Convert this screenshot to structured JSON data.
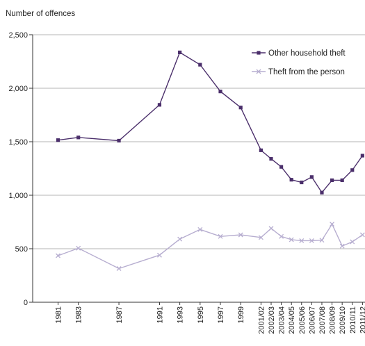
{
  "chart_data": {
    "type": "line",
    "title": "",
    "ylabel": "Number of offences",
    "xlabel": "",
    "ylim": [
      0,
      2500
    ],
    "yticks": [
      0,
      500,
      1000,
      1500,
      2000,
      2500
    ],
    "ytick_labels": [
      "0",
      "500",
      "1,000",
      "1,500",
      "2,000",
      "2,500"
    ],
    "grid": "horizontal",
    "legend_position": "top-right",
    "x": [
      "1981",
      "1983",
      "1987",
      "1991",
      "1993",
      "1995",
      "1997",
      "1999",
      "2001/02",
      "2002/03",
      "2003/04",
      "2004/05",
      "2005/06",
      "2006/07",
      "2007/08",
      "2008/09",
      "2009/10",
      "2010/11",
      "2011/12"
    ],
    "x_positions": [
      1981,
      1983,
      1987,
      1991,
      1993,
      1995,
      1997,
      1999,
      2001,
      2002,
      2003,
      2004,
      2005,
      2006,
      2007,
      2008,
      2009,
      2010,
      2011
    ],
    "series": [
      {
        "name": "Other household theft",
        "color": "#4b2f6b",
        "marker": "square",
        "values": [
          1515,
          1540,
          1510,
          1845,
          2335,
          2220,
          1970,
          1820,
          1420,
          1340,
          1265,
          1145,
          1120,
          1170,
          1025,
          1140,
          1140,
          1235,
          1370
        ]
      },
      {
        "name": "Theft from the person",
        "color": "#b7aed0",
        "marker": "x",
        "values": [
          435,
          505,
          315,
          440,
          590,
          680,
          615,
          630,
          605,
          690,
          615,
          585,
          575,
          575,
          580,
          730,
          525,
          565,
          630
        ]
      }
    ]
  }
}
